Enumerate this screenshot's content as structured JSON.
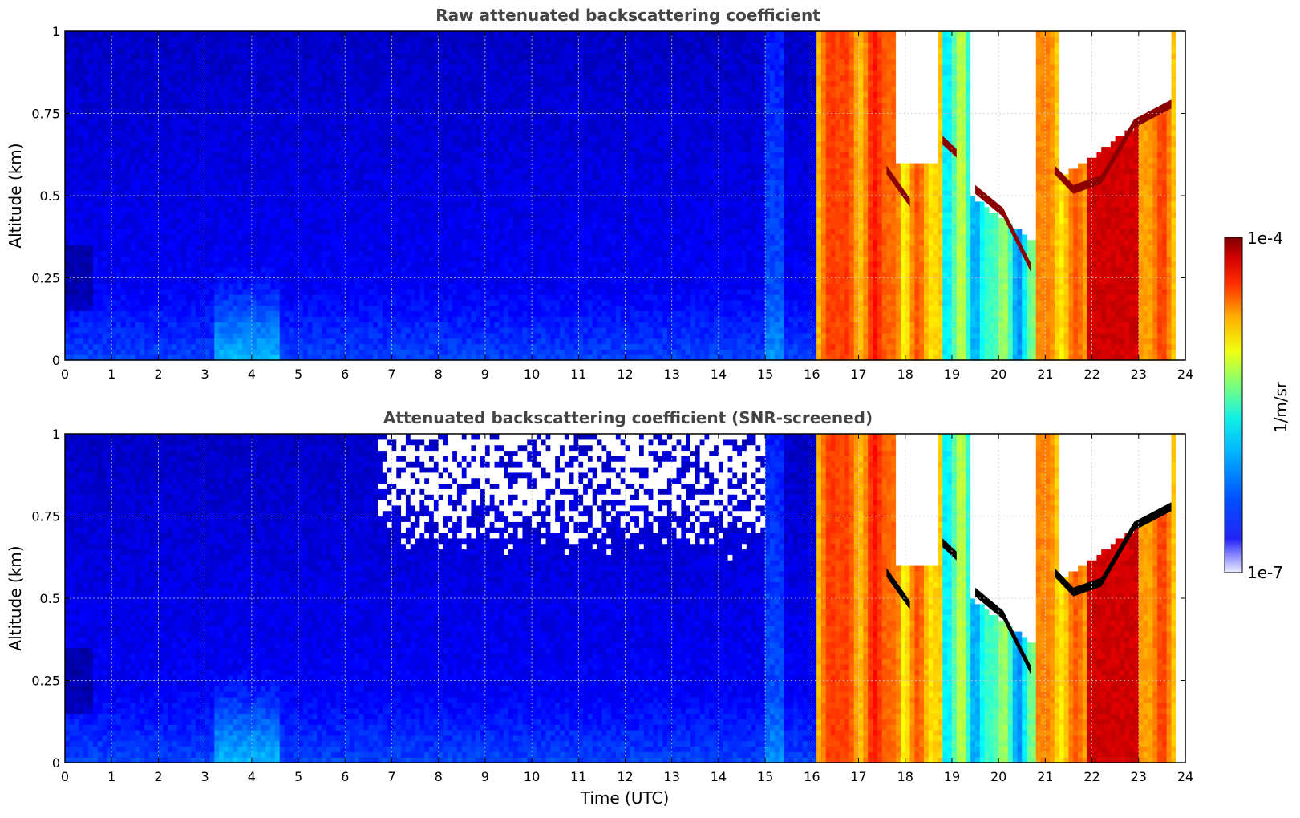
{
  "chart_data": [
    {
      "type": "heatmap",
      "title": "Raw attenuated backscattering coefficient",
      "xlabel": "",
      "ylabel": "Altitude (km)",
      "xlim": [
        0,
        24
      ],
      "ylim": [
        0,
        1
      ],
      "xticks": [
        "0",
        "1",
        "2",
        "3",
        "4",
        "5",
        "6",
        "7",
        "8",
        "9",
        "10",
        "11",
        "12",
        "13",
        "14",
        "15",
        "16",
        "17",
        "18",
        "19",
        "20",
        "21",
        "22",
        "23",
        "24"
      ],
      "yticks": [
        "0",
        "0.25",
        "0.5",
        "0.75",
        "1"
      ],
      "grid": true,
      "masked_low_snr": false,
      "cloud_base_features": [
        {
          "t_start": 17.6,
          "t_end": 18.1,
          "alt_start": 0.58,
          "alt_end": 0.48
        },
        {
          "t_start": 18.8,
          "t_end": 19.1,
          "alt_start": 0.67,
          "alt_end": 0.63
        },
        {
          "t_start": 19.5,
          "t_end": 20.1,
          "alt_start": 0.52,
          "alt_end": 0.45
        },
        {
          "t_start": 20.1,
          "t_end": 20.7,
          "alt_start": 0.45,
          "alt_end": 0.28
        },
        {
          "t_start": 21.2,
          "t_end": 21.6,
          "alt_start": 0.58,
          "alt_end": 0.52
        },
        {
          "t_start": 21.6,
          "t_end": 22.2,
          "alt_start": 0.52,
          "alt_end": 0.55
        },
        {
          "t_start": 22.2,
          "t_end": 22.9,
          "alt_start": 0.55,
          "alt_end": 0.72
        },
        {
          "t_start": 22.9,
          "t_end": 23.7,
          "alt_start": 0.72,
          "alt_end": 0.78
        }
      ]
    },
    {
      "type": "heatmap",
      "title": "Attenuated backscattering coefficient (SNR-screened)",
      "xlabel": "Time (UTC)",
      "ylabel": "Altitude (km)",
      "xlim": [
        0,
        24
      ],
      "ylim": [
        0,
        1
      ],
      "xticks": [
        "0",
        "1",
        "2",
        "3",
        "4",
        "5",
        "6",
        "7",
        "8",
        "9",
        "10",
        "11",
        "12",
        "13",
        "14",
        "15",
        "16",
        "17",
        "18",
        "19",
        "20",
        "21",
        "22",
        "23",
        "24"
      ],
      "yticks": [
        "0",
        "0.25",
        "0.5",
        "0.75",
        "1"
      ],
      "grid": true,
      "masked_low_snr": true,
      "cloud_base_features": [
        {
          "t_start": 17.6,
          "t_end": 18.1,
          "alt_start": 0.58,
          "alt_end": 0.48
        },
        {
          "t_start": 18.8,
          "t_end": 19.1,
          "alt_start": 0.67,
          "alt_end": 0.63
        },
        {
          "t_start": 19.5,
          "t_end": 20.1,
          "alt_start": 0.52,
          "alt_end": 0.45
        },
        {
          "t_start": 20.1,
          "t_end": 20.7,
          "alt_start": 0.45,
          "alt_end": 0.28
        },
        {
          "t_start": 21.2,
          "t_end": 21.6,
          "alt_start": 0.58,
          "alt_end": 0.52
        },
        {
          "t_start": 21.6,
          "t_end": 22.2,
          "alt_start": 0.52,
          "alt_end": 0.55
        },
        {
          "t_start": 22.2,
          "t_end": 22.9,
          "alt_start": 0.55,
          "alt_end": 0.72
        },
        {
          "t_start": 22.9,
          "t_end": 23.7,
          "alt_start": 0.72,
          "alt_end": 0.78
        }
      ]
    }
  ],
  "colorbar": {
    "max_label": "1e-4",
    "min_label": "1e-7",
    "unit_label": "1/m/sr",
    "colormap": "jet",
    "scale": "log",
    "range": [
      1e-07,
      0.0001
    ]
  },
  "colors": {
    "background": "#ffffff",
    "title": "#444444",
    "masked": "#ffffff",
    "saturated": "#000000"
  }
}
